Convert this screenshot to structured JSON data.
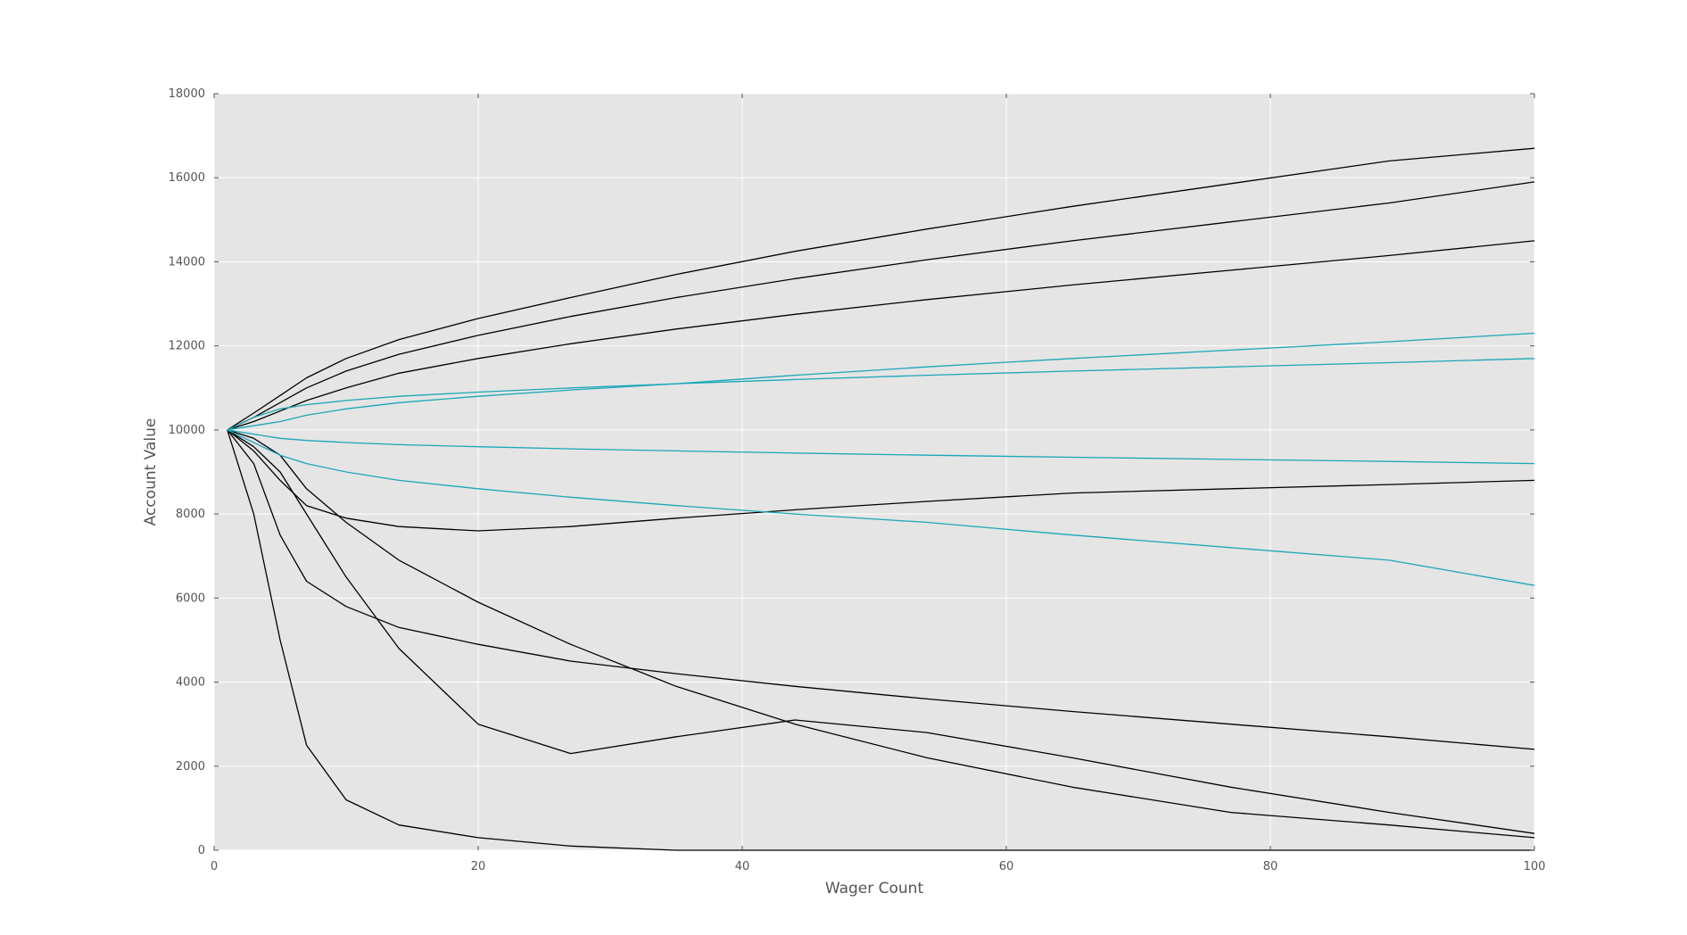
{
  "chart_data": {
    "type": "line",
    "title": "",
    "xlabel": "Wager Count",
    "ylabel": "Account Value",
    "xlim": [
      0,
      100
    ],
    "ylim": [
      0,
      18000
    ],
    "x_ticks": [
      "0",
      "20",
      "40",
      "60",
      "80",
      "100"
    ],
    "y_ticks": [
      "0",
      "2000",
      "4000",
      "6000",
      "8000",
      "10000",
      "12000",
      "14000",
      "16000",
      "18000"
    ],
    "grid": true,
    "legend": "none",
    "colors": {
      "plot_background": "#e5e5e5",
      "grid": "#ffffff",
      "series_winning": "#000000",
      "series_midrange": "#1aa7b8"
    },
    "series": [
      {
        "group": "black",
        "values": [
          10000,
          10400,
          10820,
          11240,
          11700,
          12150,
          12650,
          13150,
          13700,
          14250,
          14780,
          15320,
          15860,
          16400,
          16700
        ]
      },
      {
        "group": "black",
        "values": [
          10000,
          10300,
          10650,
          11000,
          11400,
          11800,
          12250,
          12700,
          13150,
          13600,
          14050,
          14500,
          14950,
          15400,
          15900
        ]
      },
      {
        "group": "black",
        "values": [
          10000,
          10200,
          10450,
          10700,
          11000,
          11350,
          11700,
          12050,
          12400,
          12750,
          13100,
          13450,
          13800,
          14150,
          14500
        ]
      },
      {
        "group": "black",
        "values": [
          10000,
          9500,
          8800,
          8200,
          7900,
          7700,
          7600,
          7700,
          7900,
          8100,
          8300,
          8500,
          8600,
          8700,
          8800
        ]
      },
      {
        "group": "black",
        "values": [
          10000,
          9200,
          7500,
          6400,
          5800,
          5300,
          4900,
          4500,
          4200,
          3900,
          3600,
          3300,
          3000,
          2700,
          2400
        ]
      },
      {
        "group": "black",
        "values": [
          10000,
          8000,
          5000,
          2500,
          1200,
          600,
          300,
          100,
          0,
          0,
          0,
          0,
          0,
          0,
          0
        ]
      },
      {
        "group": "black",
        "values": [
          10000,
          9600,
          9000,
          8000,
          6500,
          4800,
          3000,
          2300,
          2700,
          3100,
          2800,
          2200,
          1500,
          900,
          400
        ]
      },
      {
        "group": "black",
        "values": [
          10000,
          9800,
          9400,
          8600,
          7800,
          6900,
          5900,
          4900,
          3900,
          3000,
          2200,
          1500,
          900,
          600,
          300
        ]
      },
      {
        "group": "cyan",
        "values": [
          10000,
          10300,
          10500,
          10600,
          10700,
          10800,
          10900,
          11000,
          11100,
          11200,
          11300,
          11400,
          11500,
          11600,
          11700
        ]
      },
      {
        "group": "cyan",
        "values": [
          10000,
          9700,
          9400,
          9200,
          9000,
          8800,
          8600,
          8400,
          8200,
          8000,
          7800,
          7500,
          7200,
          6900,
          6300
        ]
      },
      {
        "group": "cyan",
        "values": [
          10000,
          10100,
          10200,
          10350,
          10500,
          10650,
          10800,
          10950,
          11100,
          11300,
          11500,
          11700,
          11900,
          12100,
          12300
        ]
      },
      {
        "group": "cyan",
        "values": [
          10000,
          9900,
          9800,
          9750,
          9700,
          9650,
          9600,
          9550,
          9500,
          9450,
          9400,
          9350,
          9300,
          9250,
          9200
        ]
      }
    ],
    "series_x": [
      1,
      3,
      5,
      7,
      10,
      14,
      20,
      27,
      35,
      44,
      54,
      65,
      77,
      89,
      100
    ]
  }
}
